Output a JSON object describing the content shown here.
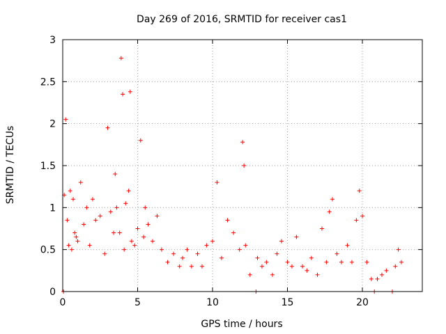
{
  "chart_data": {
    "type": "scatter",
    "title": "Day 269 of 2016, SRMTID for receiver cas1",
    "xlabel": "GPS time / hours",
    "ylabel": "SRMTID / TECUs",
    "xlim": [
      0,
      24
    ],
    "ylim": [
      0,
      3
    ],
    "xticks": [
      0,
      5,
      10,
      15,
      20
    ],
    "yticks": [
      0,
      0.5,
      1,
      1.5,
      2,
      2.5,
      3
    ],
    "xtick_labels": [
      "0",
      "5",
      "10",
      "15",
      "20"
    ],
    "ytick_labels": [
      "0",
      "0.5",
      "1",
      "1.5",
      "2",
      "2.5",
      "3"
    ],
    "grid": true,
    "marker": "+",
    "color": "#ff0000",
    "series": [
      {
        "name": "SRMTID",
        "x": [
          0.05,
          0.1,
          0.2,
          0.3,
          0.4,
          0.5,
          0.6,
          0.7,
          0.8,
          0.9,
          1.0,
          1.2,
          1.4,
          1.6,
          1.8,
          2.0,
          2.2,
          2.5,
          2.8,
          3.0,
          3.2,
          3.4,
          3.5,
          3.6,
          3.8,
          3.9,
          4.0,
          4.1,
          4.2,
          4.4,
          4.5,
          4.6,
          4.8,
          5.0,
          5.2,
          5.4,
          5.5,
          5.7,
          6.0,
          6.3,
          6.6,
          7.0,
          7.4,
          7.8,
          8.0,
          8.3,
          8.6,
          9.0,
          9.3,
          9.6,
          10.0,
          10.3,
          10.6,
          11.0,
          11.4,
          11.8,
          12.0,
          12.1,
          12.2,
          12.5,
          12.9,
          13.0,
          13.3,
          13.6,
          14.0,
          14.3,
          14.6,
          15.0,
          15.3,
          15.6,
          16.0,
          16.3,
          16.6,
          17.0,
          17.3,
          17.6,
          17.8,
          18.0,
          18.3,
          18.6,
          19.0,
          19.3,
          19.6,
          19.8,
          20.0,
          20.3,
          20.6,
          20.8,
          21.0,
          21.3,
          21.6,
          22.0,
          22.2,
          22.4,
          22.6
        ],
        "y": [
          0.0,
          1.15,
          2.05,
          0.85,
          0.55,
          1.2,
          0.5,
          1.1,
          0.7,
          0.65,
          0.6,
          1.3,
          0.8,
          1.0,
          0.55,
          1.1,
          0.85,
          0.9,
          0.45,
          1.95,
          0.95,
          0.7,
          1.4,
          1.0,
          0.7,
          2.78,
          2.35,
          0.5,
          1.05,
          1.2,
          2.38,
          0.6,
          0.55,
          0.75,
          1.8,
          0.65,
          1.0,
          0.8,
          0.6,
          0.9,
          0.5,
          0.35,
          0.45,
          0.3,
          0.4,
          0.5,
          0.3,
          0.45,
          0.3,
          0.55,
          0.6,
          1.3,
          0.4,
          0.85,
          0.7,
          0.5,
          1.78,
          1.5,
          0.55,
          0.2,
          0.0,
          0.4,
          0.3,
          0.35,
          0.2,
          0.45,
          0.6,
          0.35,
          0.3,
          0.65,
          0.3,
          0.25,
          0.4,
          0.2,
          0.75,
          0.35,
          0.95,
          1.1,
          0.45,
          0.35,
          0.55,
          0.35,
          0.85,
          1.2,
          0.9,
          0.35,
          0.15,
          0.0,
          0.15,
          0.2,
          0.25,
          0.0,
          0.3,
          0.5,
          0.35
        ]
      }
    ]
  }
}
